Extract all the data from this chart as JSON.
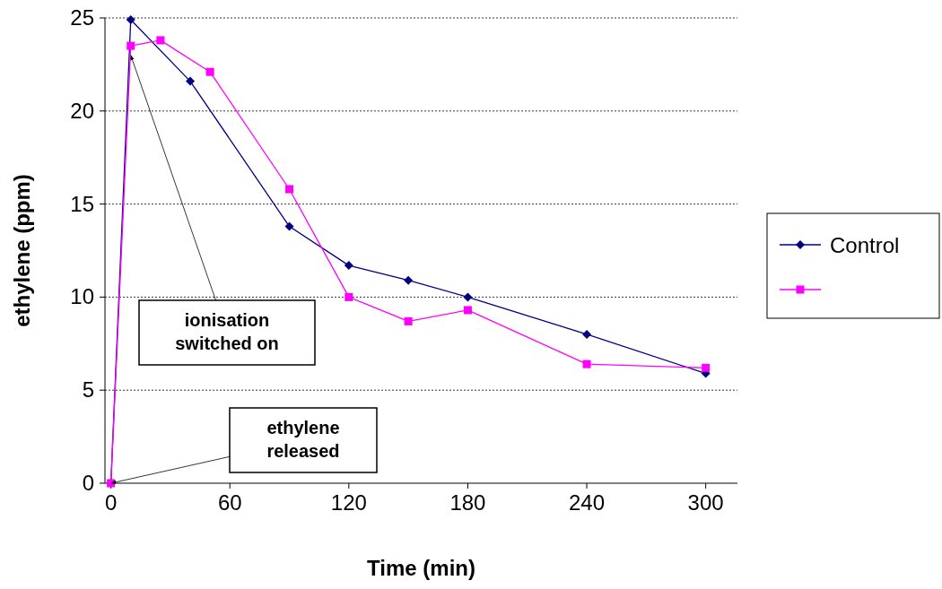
{
  "chart_data": {
    "type": "line",
    "xlabel": "Time (min)",
    "ylabel": "ethylene (ppm)",
    "xlim": [
      -3,
      316
    ],
    "ylim": [
      0,
      25
    ],
    "xticks": [
      0,
      60,
      120,
      180,
      240,
      300
    ],
    "yticks": [
      0,
      5,
      10,
      15,
      20,
      25
    ],
    "grid": "y",
    "legend": "right",
    "series": [
      {
        "name": "Control",
        "color": "#000080",
        "marker": "diamond",
        "x": [
          0,
          10,
          40,
          90,
          120,
          150,
          180,
          240,
          300
        ],
        "values": [
          0,
          24.9,
          21.6,
          13.8,
          11.7,
          10.9,
          10.0,
          8.0,
          5.9
        ]
      },
      {
        "color": "#ff00ff",
        "marker": "square",
        "x": [
          0,
          10,
          25,
          50,
          90,
          120,
          150,
          180,
          240,
          300
        ],
        "values": [
          0,
          23.5,
          23.8,
          22.1,
          15.8,
          10.0,
          8.7,
          9.3,
          6.4,
          6.2
        ]
      }
    ],
    "annotations": [
      {
        "text": "ionisation switched on",
        "x": 10,
        "y": 23
      },
      {
        "text": "ethylene released",
        "x": 0,
        "y": 0
      }
    ]
  }
}
